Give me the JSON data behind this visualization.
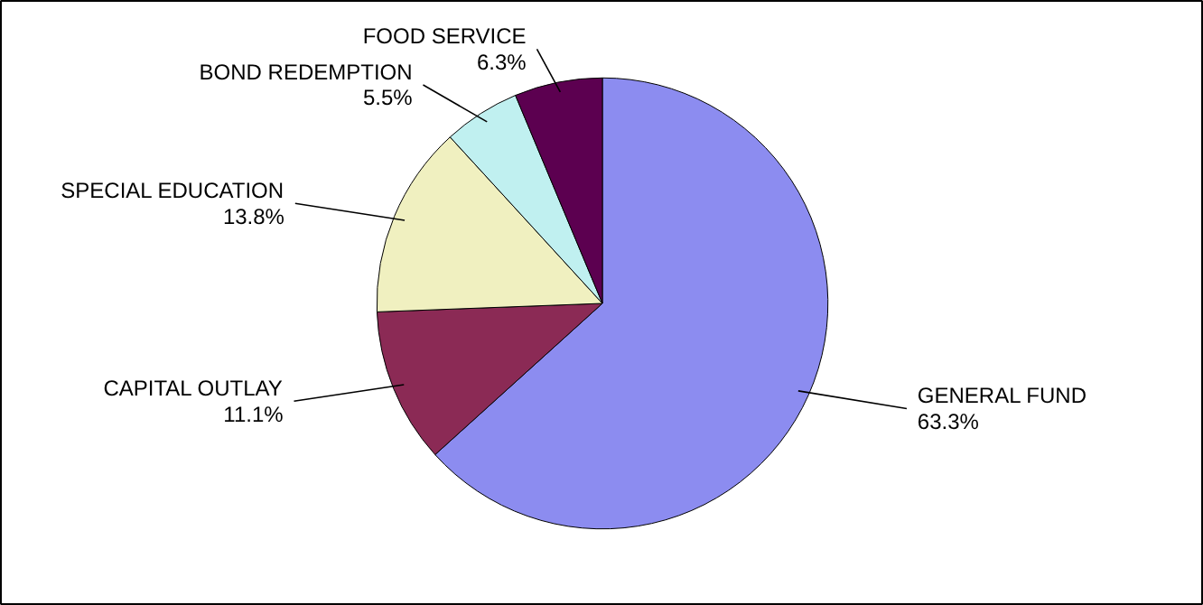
{
  "chart_data": {
    "type": "pie",
    "categories": [
      "GENERAL FUND",
      "CAPITAL OUTLAY",
      "SPECIAL EDUCATION",
      "BOND REDEMPTION",
      "FOOD SERVICE"
    ],
    "values": [
      63.3,
      11.1,
      13.8,
      5.5,
      6.3
    ],
    "value_labels": [
      "63.3%",
      "11.1%",
      "13.8%",
      "5.5%",
      "6.3%"
    ],
    "colors": [
      "#8c8cf0",
      "#8b2a55",
      "#f0f0c0",
      "#c0f0f0",
      "#5c0050"
    ]
  }
}
